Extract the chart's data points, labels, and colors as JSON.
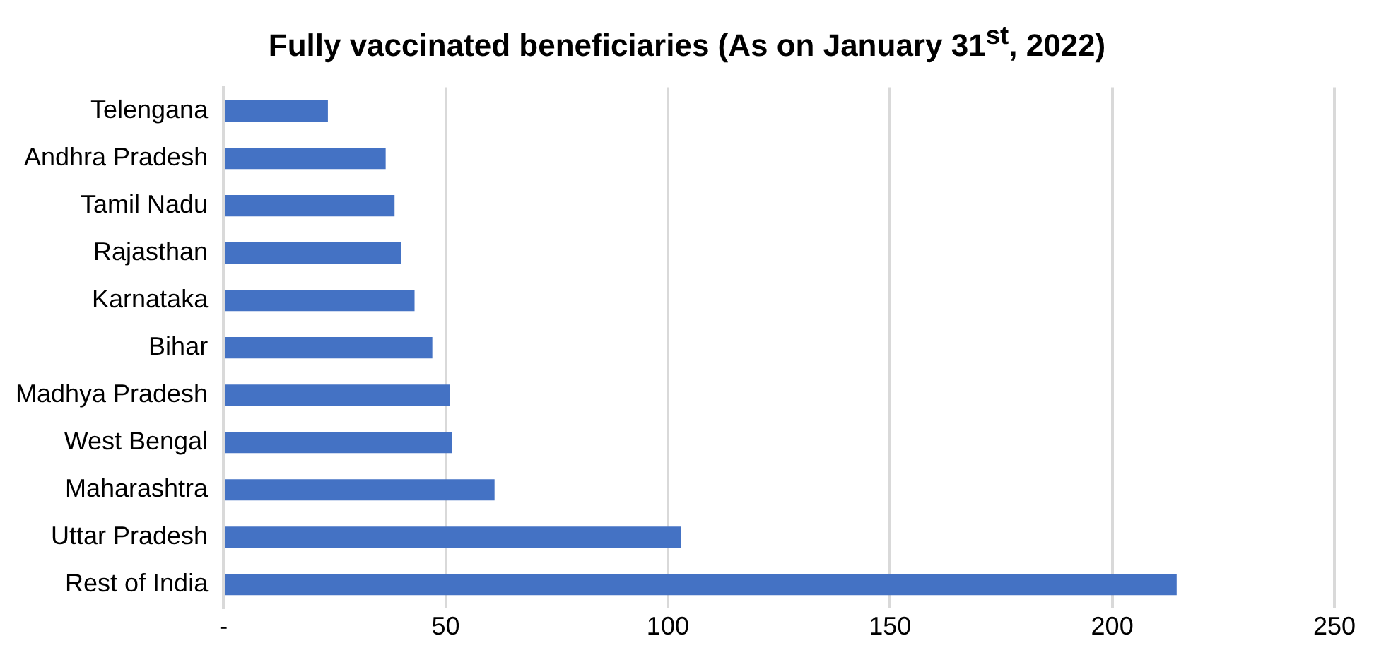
{
  "chart_data": {
    "type": "bar",
    "orientation": "horizontal",
    "title": "Fully vaccinated beneficiaries (As on January 31$^{st}$, 2022)",
    "categories": [
      "Telengana",
      "Andhra Pradesh",
      "Tamil Nadu",
      "Rajasthan",
      "Karnataka",
      "Bihar",
      "Madhya Pradesh",
      "West Bengal",
      "Maharashtra",
      "Uttar Pradesh",
      "Rest of India"
    ],
    "values": [
      23.5,
      36.5,
      38.5,
      40,
      43,
      47,
      51,
      51.5,
      61,
      103,
      214.5
    ],
    "color": "#4472c4",
    "xlim": [
      0,
      250
    ],
    "xticks": [
      {
        "value": 0,
        "label": "-"
      },
      50,
      100,
      150,
      200,
      250
    ],
    "grid": "x"
  }
}
